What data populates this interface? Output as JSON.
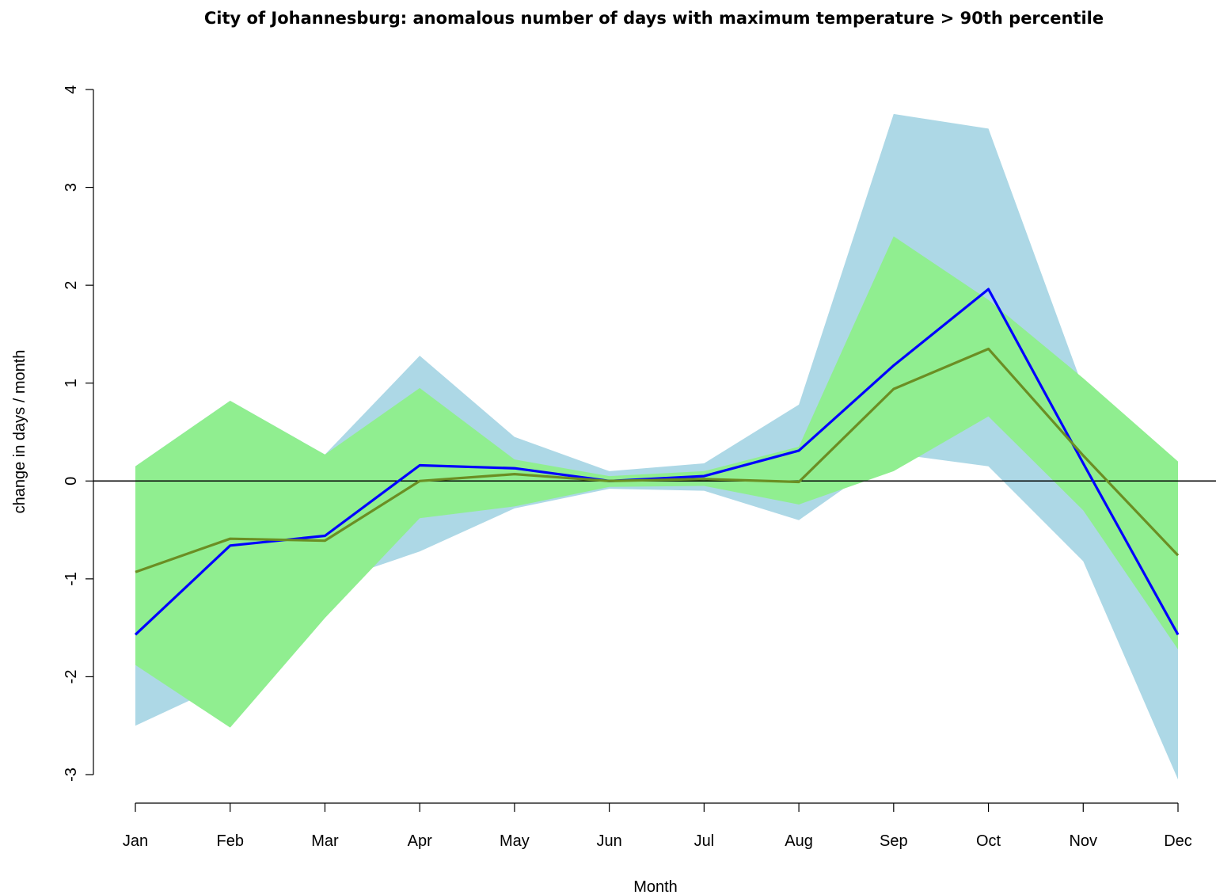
{
  "chart_data": {
    "type": "area",
    "title": "City of Johannesburg: anomalous number of days with maximum temperature > 90th percentile",
    "xlabel": "Month",
    "ylabel": "change in days / month",
    "categories": [
      "Jan",
      "Feb",
      "Mar",
      "Apr",
      "May",
      "Jun",
      "Jul",
      "Aug",
      "Sep",
      "Oct",
      "Nov",
      "Dec"
    ],
    "ylim": [
      -3,
      4
    ],
    "yticks": [
      -3,
      -2,
      -1,
      0,
      1,
      2,
      3,
      4
    ],
    "ytick_labels": [
      "-3",
      "-2",
      "-1",
      "0",
      "1",
      "2",
      "3",
      "4"
    ],
    "reference_line": 0,
    "grid": false,
    "bands": [
      {
        "color": "#add8e6",
        "upper": [
          0.15,
          0.82,
          0.27,
          1.28,
          0.45,
          0.1,
          0.18,
          0.78,
          3.75,
          3.6,
          0.95,
          0.18
        ],
        "lower": [
          -2.5,
          -2.05,
          -1.05,
          -0.72,
          -0.28,
          -0.08,
          -0.1,
          -0.4,
          0.28,
          0.15,
          -0.82,
          -3.05
        ]
      },
      {
        "color": "#90ee90",
        "upper": [
          0.15,
          0.82,
          0.27,
          0.95,
          0.22,
          0.05,
          0.1,
          0.35,
          2.5,
          1.85,
          1.05,
          0.2
        ],
        "lower": [
          -1.88,
          -2.52,
          -1.4,
          -0.38,
          -0.26,
          -0.06,
          -0.05,
          -0.24,
          0.1,
          0.66,
          -0.3,
          -1.72
        ]
      }
    ],
    "series": [
      {
        "color": "#0000ff",
        "values": [
          -1.57,
          -0.66,
          -0.56,
          0.16,
          0.13,
          0.0,
          0.05,
          0.31,
          1.18,
          1.96,
          0.18,
          -1.57
        ]
      },
      {
        "color": "#6b8e23",
        "values": [
          -0.93,
          -0.59,
          -0.61,
          0.0,
          0.07,
          0.0,
          0.02,
          -0.01,
          0.94,
          1.35,
          0.26,
          -0.76
        ]
      }
    ],
    "zero_line_color": "#000000"
  }
}
